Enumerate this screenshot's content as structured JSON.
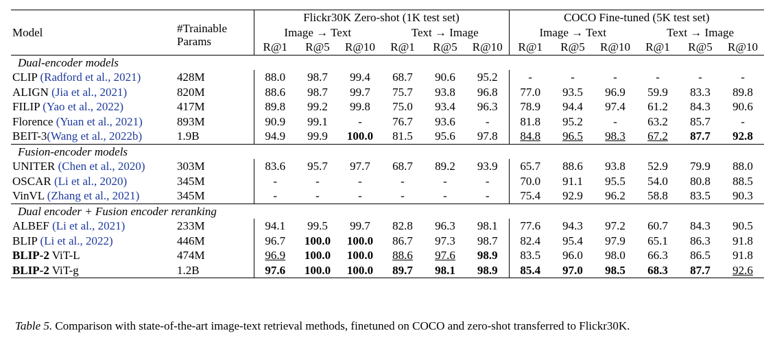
{
  "header": {
    "model": "Model",
    "params": "#Trainable Params",
    "groups": [
      {
        "title": "Flickr30K Zero-shot (1K test set)",
        "subgroups": [
          "Image → Text",
          "Text → Image"
        ]
      },
      {
        "title": "COCO Fine-tuned (5K test set)",
        "subgroups": [
          "Image → Text",
          "Text → Image"
        ]
      }
    ],
    "metrics": [
      "R@1",
      "R@5",
      "R@10"
    ]
  },
  "sections": [
    {
      "title": "Dual-encoder models",
      "rows": [
        {
          "model": "CLIP",
          "cite": "(Radford et al., 2021)",
          "params": "428M",
          "cells": [
            "88.0",
            "98.7",
            "99.4",
            "68.7",
            "90.6",
            "95.2",
            "-",
            "-",
            "-",
            "-",
            "-",
            "-"
          ]
        },
        {
          "model": "ALIGN",
          "cite": "(Jia et al., 2021)",
          "params": "820M",
          "cells": [
            "88.6",
            "98.7",
            "99.7",
            "75.7",
            "93.8",
            "96.8",
            "77.0",
            "93.5",
            "96.9",
            "59.9",
            "83.3",
            "89.8"
          ]
        },
        {
          "model": "FILIP",
          "cite": "(Yao et al., 2022)",
          "params": "417M",
          "cells": [
            "89.8",
            "99.2",
            "99.8",
            "75.0",
            "93.4",
            "96.3",
            "78.9",
            "94.4",
            "97.4",
            "61.2",
            "84.3",
            "90.6"
          ]
        },
        {
          "model": "Florence",
          "cite": "(Yuan et al., 2021)",
          "params": "893M",
          "cells": [
            "90.9",
            "99.1",
            "-",
            "76.7",
            "93.6",
            "-",
            "81.8",
            "95.2",
            "-",
            "63.2",
            "85.7",
            "-"
          ]
        },
        {
          "model": "BEIT-3",
          "cite": "(Wang et al., 2022b)",
          "params": "1.9B",
          "cells": [
            "94.9",
            "99.9",
            {
              "text": "100.0",
              "style": "bold"
            },
            "81.5",
            "95.6",
            "97.8",
            {
              "text": "84.8",
              "style": "underline"
            },
            {
              "text": "96.5",
              "style": "underline"
            },
            {
              "text": "98.3",
              "style": "underline"
            },
            {
              "text": "67.2",
              "style": "underline"
            },
            {
              "text": "87.7",
              "style": "bold"
            },
            {
              "text": "92.8",
              "style": "bold"
            }
          ]
        }
      ]
    },
    {
      "title": "Fusion-encoder models",
      "rows": [
        {
          "model": "UNITER",
          "cite": "(Chen et al., 2020)",
          "params": "303M",
          "cells": [
            "83.6",
            "95.7",
            "97.7",
            "68.7",
            "89.2",
            "93.9",
            "65.7",
            "88.6",
            "93.8",
            "52.9",
            "79.9",
            "88.0"
          ]
        },
        {
          "model": "OSCAR",
          "cite": "(Li et al., 2020)",
          "params": "345M",
          "cells": [
            "-",
            "-",
            "-",
            "-",
            "-",
            "-",
            "70.0",
            "91.1",
            "95.5",
            "54.0",
            "80.8",
            "88.5"
          ]
        },
        {
          "model": "VinVL",
          "cite": "(Zhang et al., 2021)",
          "params": "345M",
          "cells": [
            "-",
            "-",
            "-",
            "-",
            "-",
            "-",
            "75.4",
            "92.9",
            "96.2",
            "58.8",
            "83.5",
            "90.3"
          ]
        }
      ]
    },
    {
      "title": "Dual encoder + Fusion encoder reranking",
      "rows": [
        {
          "model": "ALBEF",
          "cite": "(Li et al., 2021)",
          "params": "233M",
          "cells": [
            "94.1",
            "99.5",
            "99.7",
            "82.8",
            "96.3",
            "98.1",
            "77.6",
            "94.3",
            "97.2",
            "60.7",
            "84.3",
            "90.5"
          ]
        },
        {
          "model": "BLIP",
          "cite": "(Li et al., 2022)",
          "params": "446M",
          "cells": [
            "96.7",
            {
              "text": "100.0",
              "style": "bold"
            },
            {
              "text": "100.0",
              "style": "bold"
            },
            "86.7",
            "97.3",
            "98.7",
            "82.4",
            "95.4",
            "97.9",
            "65.1",
            "86.3",
            "91.8"
          ]
        },
        {
          "model": "BLIP-2",
          "model_style": "bold",
          "variant": "ViT-L",
          "params": "474M",
          "cells": [
            {
              "text": "96.9",
              "style": "underline"
            },
            {
              "text": "100.0",
              "style": "bold"
            },
            {
              "text": "100.0",
              "style": "bold"
            },
            {
              "text": "88.6",
              "style": "underline"
            },
            {
              "text": "97.6",
              "style": "underline"
            },
            {
              "text": "98.9",
              "style": "bold"
            },
            "83.5",
            "96.0",
            "98.0",
            "66.3",
            "86.5",
            "91.8"
          ]
        },
        {
          "model": "BLIP-2",
          "model_style": "bold",
          "variant": "ViT-g",
          "params": "1.2B",
          "cells": [
            {
              "text": "97.6",
              "style": "bold"
            },
            {
              "text": "100.0",
              "style": "bold"
            },
            {
              "text": "100.0",
              "style": "bold"
            },
            {
              "text": "89.7",
              "style": "bold"
            },
            {
              "text": "98.1",
              "style": "bold"
            },
            {
              "text": "98.9",
              "style": "bold"
            },
            {
              "text": "85.4",
              "style": "bold"
            },
            {
              "text": "97.0",
              "style": "bold"
            },
            {
              "text": "98.5",
              "style": "bold"
            },
            {
              "text": "68.3",
              "style": "bold"
            },
            {
              "text": "87.7",
              "style": "bold"
            },
            {
              "text": "92.6",
              "style": "underline"
            }
          ]
        }
      ]
    }
  ],
  "caption": {
    "label": "Table 5.",
    "text": "Comparison with state-of-the-art image-text retrieval methods, finetuned on COCO and zero-shot transferred to Flickr30K."
  }
}
